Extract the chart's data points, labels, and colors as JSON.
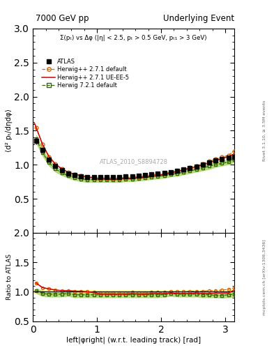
{
  "title_left": "7000 GeV pp",
  "title_right": "Underlying Event",
  "right_label_top": "Rivet 3.1.10, ≥ 3.5M events",
  "right_label_bottom": "mcplots.cern.ch [arXiv:1306.3436]",
  "subtitle": "Σ(pₜ) vs Δφ (|η| < 2.5, pₜ > 0.5 GeV, pₜ₁ > 3 GeV)",
  "watermark": "ATLAS_2010_S8894728",
  "xlabel": "left|φright| (w.r.t. leading track) [rad]",
  "ylabel": "⟨d² pₜ/dηdφ⟩",
  "ylabel_ratio": "Ratio to ATLAS",
  "ylim": [
    0.0,
    3.0
  ],
  "ylim_ratio": [
    0.5,
    2.0
  ],
  "xlim": [
    0.0,
    3.14159
  ],
  "yticks_main": [
    0.5,
    1.0,
    1.5,
    2.0,
    2.5,
    3.0
  ],
  "yticks_ratio": [
    0.5,
    1.0,
    1.5,
    2.0
  ],
  "xticks": [
    0,
    1,
    2,
    3
  ],
  "background_color": "#ffffff",
  "atlas_color": "#000000",
  "herwig_default_color": "#dd6600",
  "herwig_ueee5_color": "#cc0000",
  "herwig721_color": "#336600",
  "atlas_band_color": "#ffff99",
  "herwig721_band_color": "#99cc44",
  "atlas_data": {
    "x": [
      0.05,
      0.15,
      0.25,
      0.35,
      0.45,
      0.55,
      0.65,
      0.75,
      0.85,
      0.95,
      1.05,
      1.15,
      1.25,
      1.35,
      1.45,
      1.55,
      1.65,
      1.75,
      1.85,
      1.95,
      2.05,
      2.15,
      2.25,
      2.35,
      2.45,
      2.55,
      2.65,
      2.75,
      2.85,
      2.95,
      3.05,
      3.14
    ],
    "y": [
      1.35,
      1.22,
      1.07,
      0.98,
      0.92,
      0.87,
      0.85,
      0.83,
      0.82,
      0.82,
      0.82,
      0.82,
      0.82,
      0.82,
      0.83,
      0.83,
      0.84,
      0.85,
      0.86,
      0.87,
      0.88,
      0.89,
      0.91,
      0.93,
      0.95,
      0.97,
      1.0,
      1.03,
      1.06,
      1.08,
      1.1,
      1.12
    ],
    "yerr": [
      0.05,
      0.04,
      0.03,
      0.025,
      0.02,
      0.018,
      0.016,
      0.015,
      0.014,
      0.013,
      0.013,
      0.013,
      0.013,
      0.013,
      0.013,
      0.013,
      0.013,
      0.013,
      0.013,
      0.013,
      0.013,
      0.013,
      0.013,
      0.013,
      0.014,
      0.014,
      0.014,
      0.015,
      0.015,
      0.015,
      0.015,
      0.015
    ],
    "band_lo": [
      1.3,
      1.18,
      1.04,
      0.955,
      0.9,
      0.852,
      0.834,
      0.815,
      0.806,
      0.807,
      0.807,
      0.807,
      0.807,
      0.807,
      0.817,
      0.817,
      0.827,
      0.837,
      0.847,
      0.857,
      0.867,
      0.877,
      0.897,
      0.917,
      0.936,
      0.956,
      0.986,
      1.015,
      1.045,
      1.065,
      1.085,
      1.105
    ],
    "band_hi": [
      1.4,
      1.26,
      1.1,
      1.005,
      0.94,
      0.888,
      0.866,
      0.845,
      0.834,
      0.833,
      0.833,
      0.833,
      0.833,
      0.833,
      0.843,
      0.843,
      0.853,
      0.863,
      0.873,
      0.883,
      0.893,
      0.903,
      0.923,
      0.943,
      0.964,
      0.984,
      1.014,
      1.045,
      1.075,
      1.095,
      1.115,
      1.135
    ]
  },
  "herwig_default_data": {
    "x": [
      0.05,
      0.15,
      0.25,
      0.35,
      0.45,
      0.55,
      0.65,
      0.75,
      0.85,
      0.95,
      1.05,
      1.15,
      1.25,
      1.35,
      1.45,
      1.55,
      1.65,
      1.75,
      1.85,
      1.95,
      2.05,
      2.15,
      2.25,
      2.35,
      2.45,
      2.55,
      2.65,
      2.75,
      2.85,
      2.95,
      3.05,
      3.14
    ],
    "y": [
      1.55,
      1.3,
      1.12,
      1.01,
      0.94,
      0.89,
      0.86,
      0.84,
      0.82,
      0.81,
      0.8,
      0.8,
      0.8,
      0.8,
      0.81,
      0.82,
      0.82,
      0.83,
      0.85,
      0.86,
      0.87,
      0.89,
      0.91,
      0.93,
      0.96,
      0.98,
      1.01,
      1.05,
      1.08,
      1.11,
      1.14,
      1.2
    ]
  },
  "herwig_ueee5_data": {
    "x": [
      0.02,
      0.05,
      0.15,
      0.25,
      0.35,
      0.45,
      0.55,
      0.65,
      0.75,
      0.85,
      0.95,
      1.05,
      1.15,
      1.25,
      1.35,
      1.45,
      1.55,
      1.65,
      1.75,
      1.85,
      1.95,
      2.05,
      2.15,
      2.25,
      2.35,
      2.45,
      2.55,
      2.65,
      2.75,
      2.85,
      2.95,
      3.05,
      3.14159
    ],
    "y": [
      1.62,
      1.55,
      1.3,
      1.12,
      1.01,
      0.94,
      0.89,
      0.86,
      0.84,
      0.82,
      0.81,
      0.79,
      0.79,
      0.79,
      0.79,
      0.8,
      0.8,
      0.81,
      0.82,
      0.83,
      0.84,
      0.86,
      0.88,
      0.9,
      0.92,
      0.95,
      0.97,
      1.0,
      1.03,
      1.06,
      1.09,
      1.12,
      1.16
    ]
  },
  "herwig721_data": {
    "x": [
      0.05,
      0.15,
      0.25,
      0.35,
      0.45,
      0.55,
      0.65,
      0.75,
      0.85,
      0.95,
      1.05,
      1.15,
      1.25,
      1.35,
      1.45,
      1.55,
      1.65,
      1.75,
      1.85,
      1.95,
      2.05,
      2.15,
      2.25,
      2.35,
      2.45,
      2.55,
      2.65,
      2.75,
      2.85,
      2.95,
      3.05,
      3.14
    ],
    "y": [
      1.38,
      1.18,
      1.03,
      0.94,
      0.88,
      0.84,
      0.81,
      0.79,
      0.78,
      0.78,
      0.78,
      0.78,
      0.78,
      0.78,
      0.79,
      0.79,
      0.8,
      0.81,
      0.82,
      0.83,
      0.84,
      0.86,
      0.87,
      0.89,
      0.91,
      0.93,
      0.95,
      0.98,
      1.0,
      1.02,
      1.04,
      1.07
    ],
    "band_lo": [
      1.31,
      1.12,
      0.98,
      0.89,
      0.84,
      0.8,
      0.77,
      0.75,
      0.74,
      0.74,
      0.74,
      0.74,
      0.74,
      0.74,
      0.75,
      0.75,
      0.76,
      0.77,
      0.78,
      0.79,
      0.8,
      0.82,
      0.83,
      0.85,
      0.87,
      0.89,
      0.91,
      0.93,
      0.96,
      0.98,
      1.0,
      1.03
    ],
    "band_hi": [
      1.45,
      1.24,
      1.08,
      0.99,
      0.92,
      0.88,
      0.85,
      0.83,
      0.82,
      0.82,
      0.82,
      0.82,
      0.82,
      0.82,
      0.83,
      0.83,
      0.84,
      0.85,
      0.86,
      0.87,
      0.88,
      0.9,
      0.91,
      0.93,
      0.95,
      0.97,
      0.99,
      1.03,
      1.04,
      1.06,
      1.08,
      1.11
    ]
  },
  "ratio_herwig_default": {
    "x": [
      0.05,
      0.15,
      0.25,
      0.35,
      0.45,
      0.55,
      0.65,
      0.75,
      0.85,
      0.95,
      1.05,
      1.15,
      1.25,
      1.35,
      1.45,
      1.55,
      1.65,
      1.75,
      1.85,
      1.95,
      2.05,
      2.15,
      2.25,
      2.35,
      2.45,
      2.55,
      2.65,
      2.75,
      2.85,
      2.95,
      3.05,
      3.14
    ],
    "y": [
      1.15,
      1.07,
      1.05,
      1.03,
      1.02,
      1.02,
      1.01,
      1.01,
      1.0,
      0.99,
      0.98,
      0.98,
      0.98,
      0.98,
      0.98,
      0.99,
      0.98,
      0.98,
      0.99,
      0.99,
      0.99,
      1.0,
      1.0,
      1.0,
      1.01,
      1.01,
      1.01,
      1.02,
      1.02,
      1.03,
      1.04,
      1.07
    ]
  },
  "ratio_herwig_ueee5": {
    "x": [
      0.05,
      0.15,
      0.25,
      0.35,
      0.45,
      0.55,
      0.65,
      0.75,
      0.85,
      0.95,
      1.05,
      1.15,
      1.25,
      1.35,
      1.45,
      1.55,
      1.65,
      1.75,
      1.85,
      1.95,
      2.05,
      2.15,
      2.25,
      2.35,
      2.45,
      2.55,
      2.65,
      2.75,
      2.85,
      2.95,
      3.05,
      3.14159
    ],
    "y": [
      1.15,
      1.07,
      1.05,
      1.03,
      1.02,
      1.02,
      1.01,
      1.01,
      1.0,
      0.99,
      0.96,
      0.96,
      0.96,
      0.96,
      0.96,
      0.97,
      0.96,
      0.96,
      0.97,
      0.97,
      0.97,
      0.98,
      0.97,
      0.97,
      0.97,
      0.98,
      0.97,
      0.97,
      0.98,
      0.98,
      0.98,
      1.03
    ]
  },
  "ratio_herwig721": {
    "x": [
      0.05,
      0.15,
      0.25,
      0.35,
      0.45,
      0.55,
      0.65,
      0.75,
      0.85,
      0.95,
      1.05,
      1.15,
      1.25,
      1.35,
      1.45,
      1.55,
      1.65,
      1.75,
      1.85,
      1.95,
      2.05,
      2.15,
      2.25,
      2.35,
      2.45,
      2.55,
      2.65,
      2.75,
      2.85,
      2.95,
      3.05,
      3.14
    ],
    "y": [
      1.02,
      0.97,
      0.96,
      0.96,
      0.96,
      0.97,
      0.95,
      0.95,
      0.95,
      0.95,
      0.95,
      0.95,
      0.95,
      0.95,
      0.95,
      0.95,
      0.95,
      0.95,
      0.95,
      0.95,
      0.95,
      0.97,
      0.96,
      0.96,
      0.96,
      0.96,
      0.95,
      0.95,
      0.94,
      0.94,
      0.95,
      0.96
    ],
    "band_lo": [
      0.97,
      0.92,
      0.91,
      0.91,
      0.91,
      0.92,
      0.9,
      0.9,
      0.9,
      0.9,
      0.9,
      0.9,
      0.9,
      0.9,
      0.9,
      0.9,
      0.9,
      0.9,
      0.9,
      0.9,
      0.91,
      0.92,
      0.91,
      0.91,
      0.91,
      0.91,
      0.9,
      0.9,
      0.9,
      0.89,
      0.9,
      0.91
    ],
    "band_hi": [
      1.07,
      1.02,
      1.01,
      1.01,
      1.01,
      1.02,
      1.0,
      1.0,
      1.0,
      1.0,
      1.0,
      1.0,
      1.0,
      1.0,
      1.0,
      1.0,
      1.0,
      1.0,
      1.0,
      1.0,
      0.99,
      1.02,
      1.01,
      1.01,
      1.01,
      1.01,
      1.0,
      1.0,
      0.98,
      0.99,
      1.0,
      1.01
    ]
  },
  "atlas_ratio_band_lo": 0.97,
  "atlas_ratio_band_hi": 1.03
}
